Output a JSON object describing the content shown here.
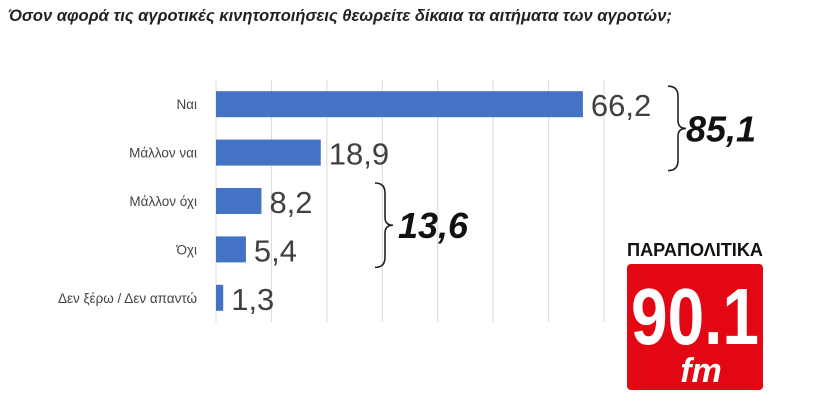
{
  "chart_data": {
    "type": "bar",
    "orientation": "horizontal",
    "title": "Όσον αφορά τις αγροτικές κινητοποιήσεις θεωρείτε δίκαια τα αιτήματα των αγροτών;",
    "categories": [
      "Ναι",
      "Μάλλον ναι",
      "Μάλλον όχι",
      "Όχι",
      "Δεν ξέρω / Δεν απαντώ"
    ],
    "values": [
      66.2,
      18.9,
      8.2,
      5.4,
      1.3
    ],
    "value_labels": [
      "66,2",
      "18,9",
      "8,2",
      "5,4",
      "1,3"
    ],
    "xlim": [
      0,
      70
    ],
    "grid": true,
    "bar_color": "#4472C4",
    "groups": [
      {
        "label": "85,1",
        "categories": [
          "Ναι",
          "Μάλλον ναι"
        ]
      },
      {
        "label": "13,6",
        "categories": [
          "Μάλλον όχι",
          "Όχι"
        ]
      }
    ]
  },
  "logo": {
    "top_text": "ΠΑΡΑΠΟΛΙΤΙΚΑ",
    "number": "90.1",
    "unit": "fm",
    "color": "#e30613"
  }
}
